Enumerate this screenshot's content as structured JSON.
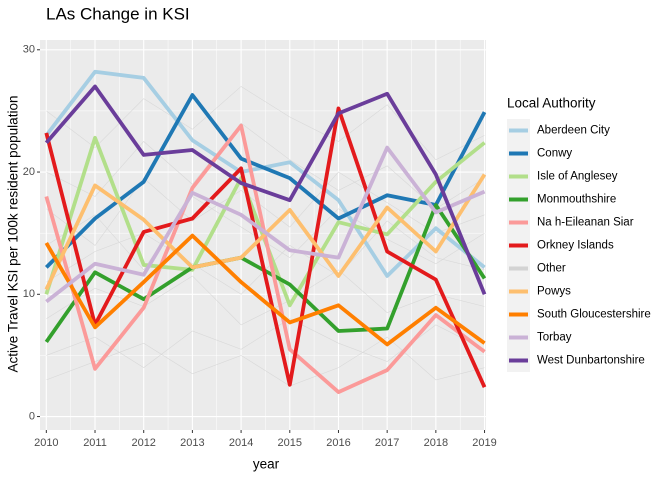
{
  "chart_data": {
    "type": "line",
    "title": "LAs Change in KSI",
    "x_label": "year",
    "y_label": "Active Travel KSI per 100k resident population",
    "legend_title": "Local Authority",
    "legend_position": "right",
    "grid": true,
    "x": [
      2010,
      2011,
      2012,
      2013,
      2014,
      2015,
      2016,
      2017,
      2018,
      2019
    ],
    "xlim": [
      2009.87,
      2019.03
    ],
    "xticks": [
      2010,
      2011,
      2012,
      2013,
      2014,
      2015,
      2016,
      2017,
      2018,
      2019
    ],
    "ylim": [
      -1.1,
      30.8
    ],
    "yticks": [
      0,
      10,
      20,
      30
    ],
    "series": [
      {
        "name": "Aberdeen City",
        "color": "#a6cee3",
        "values": [
          23.0,
          28.2,
          27.7,
          22.6,
          20.0,
          20.8,
          17.7,
          11.5,
          15.4,
          12.2
        ]
      },
      {
        "name": "Conwy",
        "color": "#1f78b4",
        "values": [
          12.2,
          16.2,
          19.2,
          26.3,
          21.1,
          19.5,
          16.2,
          18.1,
          17.3,
          24.9
        ]
      },
      {
        "name": "Isle of Anglesey",
        "color": "#b2df8a",
        "values": [
          10.0,
          22.8,
          12.4,
          12.0,
          19.5,
          9.1,
          15.9,
          14.9,
          19.2,
          22.4
        ]
      },
      {
        "name": "Monmouthshire",
        "color": "#33a02c",
        "values": [
          6.1,
          11.8,
          9.6,
          12.2,
          13.0,
          10.8,
          7.0,
          7.2,
          17.3,
          11.3
        ]
      },
      {
        "name": "Na h-Eileanan Siar",
        "color": "#fb9a99",
        "values": [
          18.0,
          3.9,
          8.9,
          18.7,
          23.8,
          5.5,
          2.0,
          3.8,
          8.3,
          5.3
        ]
      },
      {
        "name": "Orkney Islands",
        "color": "#e31a1c",
        "values": [
          23.2,
          7.5,
          15.1,
          16.2,
          20.3,
          2.6,
          25.2,
          13.5,
          11.2,
          2.4
        ]
      },
      {
        "name": "Other",
        "color": "#d3d3d3",
        "values": [
          [
            14.0,
            16.5,
            12.0,
            18.0,
            15.5,
            13.0,
            17.0,
            14.5,
            12.5,
            15.0
          ],
          [
            8.0,
            10.5,
            9.0,
            11.5,
            7.5,
            9.5,
            12.0,
            8.5,
            10.0,
            9.0
          ],
          [
            20.0,
            18.0,
            22.5,
            19.0,
            24.0,
            21.0,
            18.5,
            20.5,
            17.0,
            19.5
          ],
          [
            5.0,
            6.5,
            4.0,
            7.0,
            5.5,
            8.0,
            6.0,
            4.5,
            7.5,
            5.5
          ],
          [
            25.0,
            22.0,
            26.0,
            23.5,
            27.0,
            24.5,
            22.5,
            25.5,
            21.0,
            23.0
          ],
          [
            11.0,
            13.5,
            15.0,
            12.5,
            10.0,
            14.0,
            11.5,
            16.0,
            13.0,
            12.0
          ],
          [
            17.0,
            14.0,
            19.5,
            16.0,
            18.5,
            15.5,
            20.0,
            17.5,
            15.0,
            16.5
          ],
          [
            3.0,
            4.5,
            6.0,
            3.5,
            5.0,
            2.5,
            4.0,
            6.5,
            3.0,
            4.0
          ]
        ]
      },
      {
        "name": "Powys",
        "color": "#fdbf6f",
        "values": [
          10.4,
          18.9,
          16.1,
          12.2,
          13.0,
          16.9,
          11.5,
          17.1,
          13.5,
          19.8
        ]
      },
      {
        "name": "South Gloucestershire",
        "color": "#ff7f00",
        "values": [
          14.2,
          7.3,
          11.0,
          14.8,
          11.0,
          7.7,
          9.1,
          5.9,
          8.9,
          6.0
        ]
      },
      {
        "name": "Torbay",
        "color": "#cab2d6",
        "values": [
          9.4,
          12.5,
          11.6,
          18.3,
          16.5,
          13.6,
          13.0,
          22.0,
          16.7,
          18.4
        ]
      },
      {
        "name": "West Dunbartonshire",
        "color": "#6a3d9a",
        "values": [
          22.4,
          27.0,
          21.4,
          21.8,
          19.1,
          17.7,
          24.8,
          26.4,
          19.8,
          10.0
        ]
      }
    ]
  }
}
